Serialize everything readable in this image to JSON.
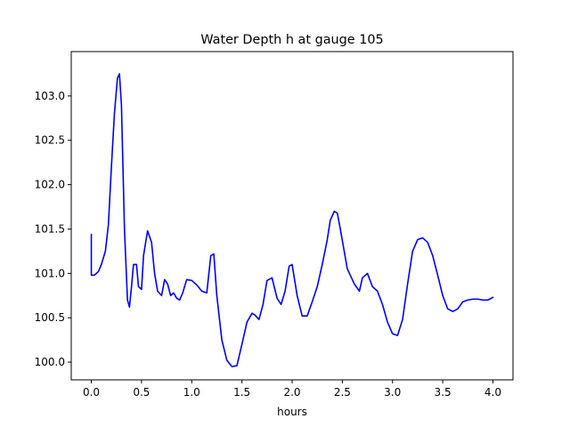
{
  "chart_data": {
    "type": "line",
    "title": "Water Depth h at gauge 105",
    "xlabel": "hours",
    "ylabel": "",
    "xlim": [
      -0.2,
      4.2
    ],
    "ylim": [
      99.8,
      103.5
    ],
    "grid": false,
    "x_ticks": [
      {
        "value": 0.0,
        "label": "0.0"
      },
      {
        "value": 0.5,
        "label": "0.5"
      },
      {
        "value": 1.0,
        "label": "1.0"
      },
      {
        "value": 1.5,
        "label": "1.5"
      },
      {
        "value": 2.0,
        "label": "2.0"
      },
      {
        "value": 2.5,
        "label": "2.5"
      },
      {
        "value": 3.0,
        "label": "3.0"
      },
      {
        "value": 3.5,
        "label": "3.5"
      },
      {
        "value": 4.0,
        "label": "4.0"
      }
    ],
    "y_ticks": [
      {
        "value": 100.0,
        "label": "100.0"
      },
      {
        "value": 100.5,
        "label": "100.5"
      },
      {
        "value": 101.0,
        "label": "101.0"
      },
      {
        "value": 101.5,
        "label": "101.5"
      },
      {
        "value": 102.0,
        "label": "102.0"
      },
      {
        "value": 102.5,
        "label": "102.5"
      },
      {
        "value": 103.0,
        "label": "103.0"
      }
    ],
    "series": [
      {
        "color": "#0000ff",
        "x": [
          0.0,
          0.0,
          0.03,
          0.07,
          0.1,
          0.14,
          0.17,
          0.2,
          0.23,
          0.26,
          0.28,
          0.3,
          0.33,
          0.36,
          0.38,
          0.4,
          0.42,
          0.45,
          0.47,
          0.5,
          0.52,
          0.56,
          0.6,
          0.63,
          0.66,
          0.7,
          0.73,
          0.76,
          0.79,
          0.82,
          0.85,
          0.88,
          0.91,
          0.95,
          1.0,
          1.05,
          1.1,
          1.15,
          1.19,
          1.22,
          1.25,
          1.3,
          1.35,
          1.4,
          1.45,
          1.5,
          1.55,
          1.6,
          1.63,
          1.67,
          1.71,
          1.75,
          1.8,
          1.85,
          1.89,
          1.93,
          1.97,
          2.0,
          2.05,
          2.1,
          2.15,
          2.2,
          2.25,
          2.3,
          2.35,
          2.38,
          2.42,
          2.45,
          2.48,
          2.55,
          2.62,
          2.67,
          2.7,
          2.75,
          2.8,
          2.85,
          2.9,
          2.95,
          3.0,
          3.05,
          3.1,
          3.15,
          3.2,
          3.25,
          3.3,
          3.35,
          3.4,
          3.45,
          3.5,
          3.55,
          3.6,
          3.65,
          3.7,
          3.75,
          3.8,
          3.85,
          3.9,
          3.95,
          4.0
        ],
        "y": [
          101.44,
          100.98,
          100.98,
          101.02,
          101.1,
          101.25,
          101.55,
          102.2,
          102.8,
          103.2,
          103.25,
          102.9,
          101.5,
          100.7,
          100.62,
          100.85,
          101.1,
          101.1,
          100.85,
          100.82,
          101.2,
          101.48,
          101.35,
          101.0,
          100.8,
          100.75,
          100.93,
          100.88,
          100.75,
          100.78,
          100.72,
          100.7,
          100.78,
          100.93,
          100.92,
          100.87,
          100.8,
          100.78,
          101.2,
          101.22,
          100.75,
          100.25,
          100.02,
          99.95,
          99.96,
          100.2,
          100.45,
          100.55,
          100.53,
          100.48,
          100.65,
          100.92,
          100.95,
          100.72,
          100.65,
          100.8,
          101.08,
          101.1,
          100.75,
          100.52,
          100.52,
          100.68,
          100.85,
          101.1,
          101.38,
          101.6,
          101.7,
          101.68,
          101.5,
          101.05,
          100.88,
          100.8,
          100.95,
          101.0,
          100.85,
          100.8,
          100.65,
          100.45,
          100.32,
          100.3,
          100.48,
          100.88,
          101.25,
          101.38,
          101.4,
          101.35,
          101.2,
          100.98,
          100.75,
          100.6,
          100.57,
          100.6,
          100.68,
          100.7,
          100.71,
          100.71,
          100.7,
          100.7,
          100.73
        ]
      }
    ]
  }
}
